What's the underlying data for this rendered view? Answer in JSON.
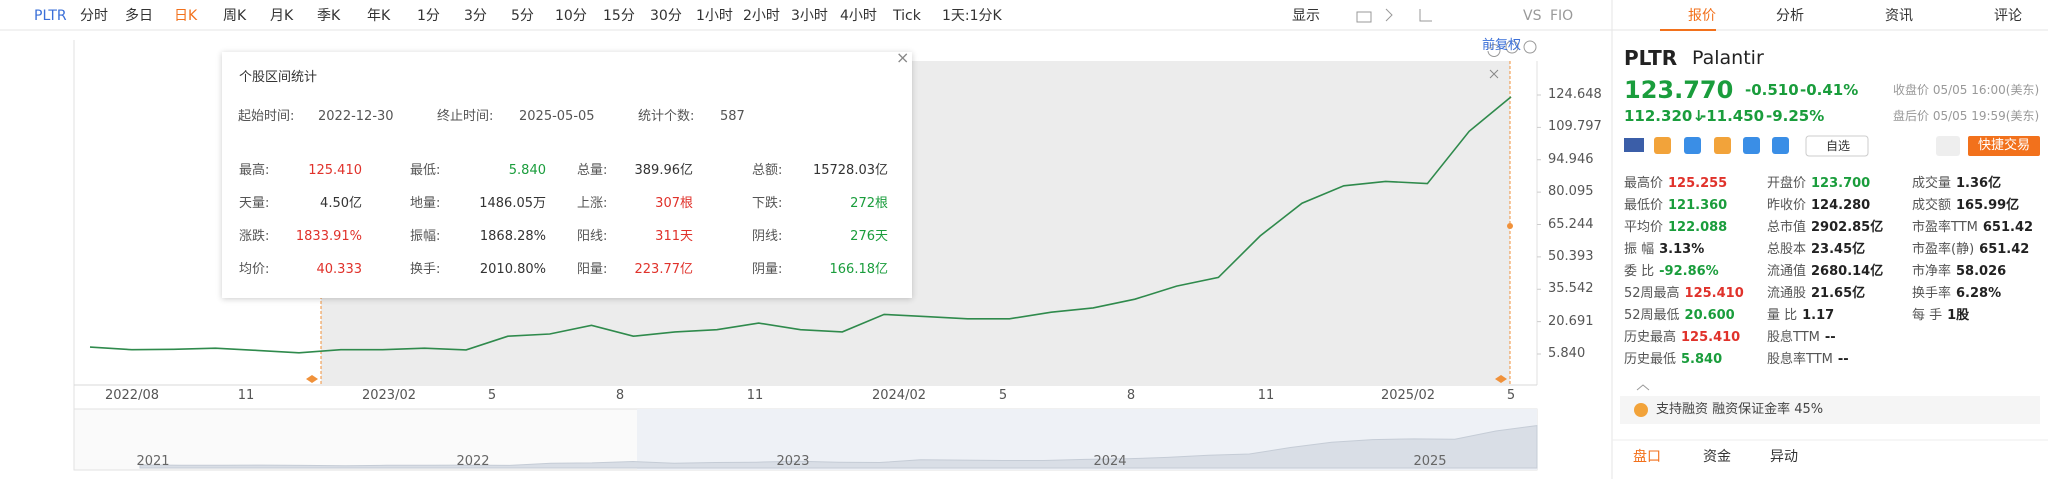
{
  "toolbar": {
    "symbol": "PLTR",
    "periods": [
      "分时",
      "多日",
      "日K",
      "周K",
      "月K",
      "季K",
      "年K",
      "1分",
      "3分",
      "5分",
      "10分",
      "15分",
      "30分",
      "1小时",
      "2小时",
      "3小时",
      "4小时",
      "Tick"
    ],
    "active_index": 2,
    "intraday": "1天:1分K",
    "display": "显示",
    "compare": "VS",
    "extra": "FIO"
  },
  "chart": {
    "adjust": "前复权",
    "ylim": [
      -8.38,
      140.25
    ],
    "yticks": [
      124.648,
      109.797,
      94.946,
      80.095,
      65.244,
      50.393,
      35.542,
      20.691,
      {
        "value": 5.84,
        "label": "5.840"
      }
    ],
    "xticks": [
      "2022/08",
      "11",
      "2023/02",
      "5",
      "8",
      "11",
      "2024/02",
      "5",
      "8",
      "11",
      "2025/02",
      "5"
    ],
    "price_series": [
      9,
      7.8,
      8,
      8.5,
      7.5,
      6.4,
      7.8,
      7.8,
      8.5,
      7.7,
      14,
      15,
      19,
      14,
      16,
      17,
      20,
      17,
      16,
      24,
      23,
      22,
      22,
      25,
      27,
      31,
      37,
      41,
      60,
      75,
      83,
      85,
      84,
      108,
      123.77
    ],
    "navigator_years": [
      "2021",
      "2022",
      "2023",
      "2024",
      "2025"
    ]
  },
  "stats": {
    "title": "个股区间统计",
    "start_label": "起始时间:",
    "start": "2022-12-30",
    "end_label": "终止时间:",
    "end": "2025-05-05",
    "count_label": "统计个数:",
    "count": "587",
    "cells": [
      [
        [
          "最高:",
          "125.410",
          "#e0322b"
        ],
        [
          "最低:",
          "5.840",
          "#1a9d3c"
        ],
        [
          "总量:",
          "389.96亿"
        ],
        [
          "总额:",
          "15728.03亿"
        ]
      ],
      [
        [
          "天量:",
          "4.50亿"
        ],
        [
          "地量:",
          "1486.05万"
        ],
        [
          "上涨:",
          "307根",
          "#e0322b"
        ],
        [
          "下跌:",
          "272根",
          "#1a9d3c"
        ]
      ],
      [
        [
          "涨跌:",
          "1833.91%",
          "#e0322b"
        ],
        [
          "振幅:",
          "1868.28%"
        ],
        [
          "阳线:",
          "311天",
          "#e0322b"
        ],
        [
          "阴线:",
          "276天",
          "#1a9d3c"
        ]
      ],
      [
        [
          "均价:",
          "40.333",
          "#e0322b"
        ],
        [
          "换手:",
          "2010.80%"
        ],
        [
          "阳量:",
          "223.77亿",
          "#e0322b"
        ],
        [
          "阴量:",
          "166.18亿",
          "#1a9d3c"
        ]
      ]
    ]
  },
  "quote": {
    "tabs": [
      "报价",
      "分析",
      "资讯",
      "评论"
    ],
    "symbol": "PLTR",
    "name": "Palantir",
    "price": "123.770",
    "change": "-0.510",
    "change_pct": "-0.41%",
    "close_note": "收盘价 05/05 16:00(美东)",
    "after_price": "112.320↓",
    "after_change": "-11.450",
    "after_pct": "-9.25%",
    "after_note": "盘后价 05/05 19:59(美东)",
    "watch": "自选",
    "trade": "快捷交易",
    "table": [
      [
        [
          "最高价",
          "125.255",
          "#e0322b"
        ],
        [
          "开盘价",
          "123.700",
          "#1a9d3c"
        ],
        [
          "成交量",
          "1.36亿"
        ]
      ],
      [
        [
          "最低价",
          "121.360",
          "#1a9d3c"
        ],
        [
          "昨收价",
          "124.280"
        ],
        [
          "成交额",
          "165.99亿"
        ]
      ],
      [
        [
          "平均价",
          "122.088",
          "#1a9d3c"
        ],
        [
          "总市值",
          "2902.85亿"
        ],
        [
          "市盈率TTM",
          "651.42"
        ]
      ],
      [
        [
          "振 幅",
          "3.13%"
        ],
        [
          "总股本",
          "23.45亿"
        ],
        [
          "市盈率(静)",
          "651.42"
        ]
      ],
      [
        [
          "委 比",
          "-92.86%",
          "#1a9d3c"
        ],
        [
          "流通值",
          "2680.14亿"
        ],
        [
          "市净率",
          "58.026"
        ]
      ],
      [
        [
          "52周最高",
          "125.410",
          "#e0322b"
        ],
        [
          "流通股",
          "21.65亿"
        ],
        [
          "换手率",
          "6.28%"
        ]
      ],
      [
        [
          "52周最低",
          "20.600",
          "#1a9d3c"
        ],
        [
          "量 比",
          "1.17"
        ],
        [
          "每 手",
          "1股"
        ]
      ],
      [
        [
          "历史最高",
          "125.410",
          "#e0322b"
        ],
        [
          "股息TTM",
          "--"
        ]
      ],
      [
        [
          "历史最低",
          "5.840",
          "#1a9d3c"
        ],
        [
          "股息率TTM",
          "--"
        ]
      ]
    ],
    "margin": "支持融资 融资保证金率 45%",
    "bottom_tabs": [
      "盘口",
      "资金",
      "异动"
    ]
  }
}
